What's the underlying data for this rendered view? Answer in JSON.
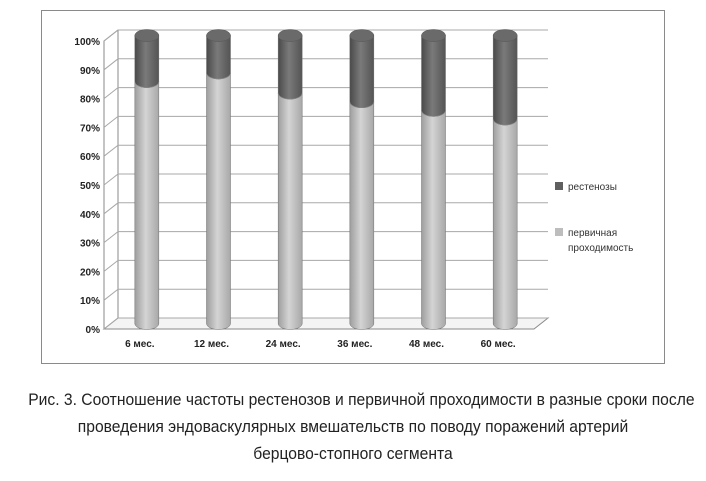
{
  "chart_data": {
    "type": "bar",
    "stacked": true,
    "style": "3d-cylinder",
    "categories": [
      "6 мес.",
      "12 мес.",
      "24 мес.",
      "36 мес.",
      "48 мес.",
      "60 мес."
    ],
    "series": [
      {
        "name": "первичная проходимость",
        "values": [
          84,
          87,
          80,
          77,
          74,
          71
        ],
        "color": "#bdbdbd"
      },
      {
        "name": "рестенозы",
        "values": [
          16,
          13,
          20,
          23,
          26,
          29
        ],
        "color": "#5f5f5f"
      }
    ],
    "ylim": [
      0,
      100
    ],
    "yticks": [
      "0%",
      "10%",
      "20%",
      "30%",
      "40%",
      "50%",
      "60%",
      "70%",
      "80%",
      "90%",
      "100%"
    ],
    "grid": true,
    "legend": "right",
    "legend_entries": [
      {
        "label": "рестенозы",
        "color": "#5f5f5f"
      },
      {
        "label_lines": [
          "первичная",
          "проходимость"
        ],
        "color": "#bdbdbd"
      }
    ]
  },
  "caption": {
    "line1": "Рис. 3. Соотношение частоты рестенозов и первичной проходимости в разные сроки после",
    "line2": "проведения эндоваскулярных вмешательств по поводу поражений артерий",
    "line3": "берцово-стопного сегмента"
  }
}
